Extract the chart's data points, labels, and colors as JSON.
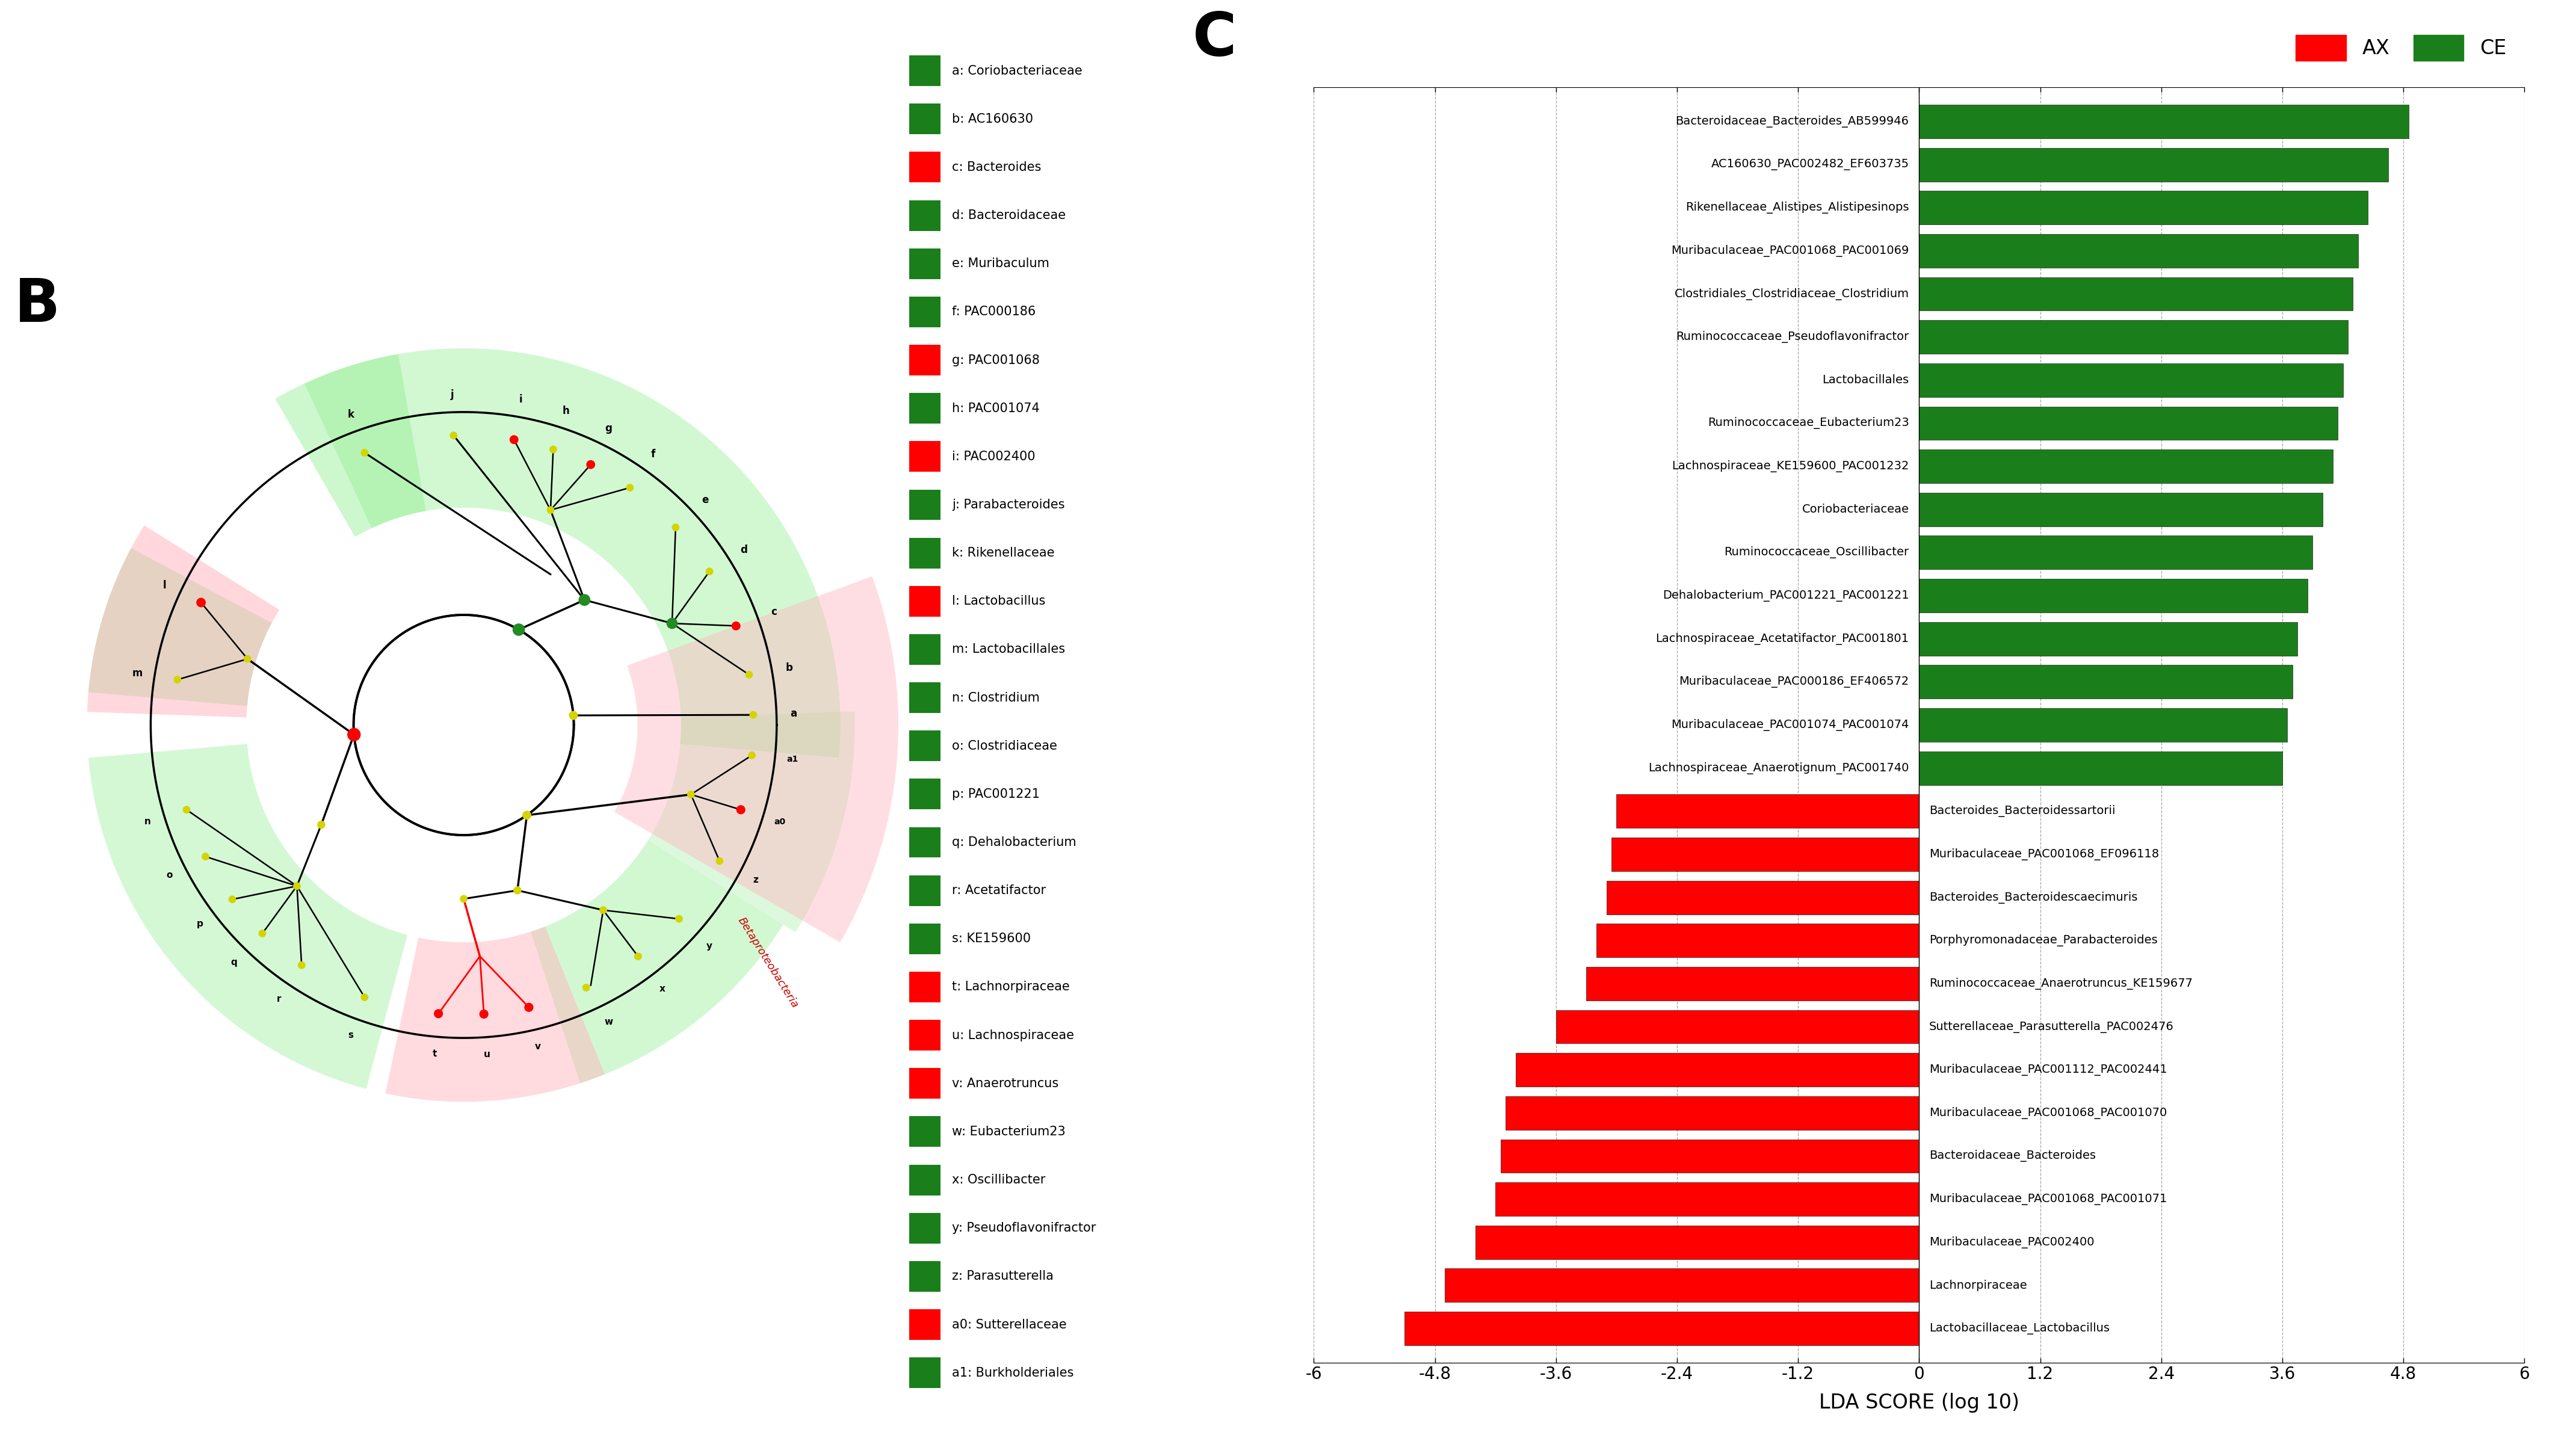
{
  "panel_c": {
    "green_bars": [
      {
        "label": "Bacteroidaceae_Bacteroides_AB599946",
        "value": 4.85
      },
      {
        "label": "AC160630_PAC002482_EF603735",
        "value": 4.65
      },
      {
        "label": "Rikenellaceae_Alistipes_Alistipesinops",
        "value": 4.45
      },
      {
        "label": "Muribaculaceae_PAC001068_PAC001069",
        "value": 4.35
      },
      {
        "label": "Clostridiales_Clostridiaceae_Clostridium",
        "value": 4.3
      },
      {
        "label": "Ruminococcaceae_Pseudoflavonifractor",
        "value": 4.25
      },
      {
        "label": "Lactobacillales",
        "value": 4.2
      },
      {
        "label": "Ruminococcaceae_Eubacterium23",
        "value": 4.15
      },
      {
        "label": "Lachnospiraceae_KE159600_PAC001232",
        "value": 4.1
      },
      {
        "label": "Coriobacteriaceae",
        "value": 4.0
      },
      {
        "label": "Ruminococcaceae_Oscillibacter",
        "value": 3.9
      },
      {
        "label": "Dehalobacterium_PAC001221_PAC001221",
        "value": 3.85
      },
      {
        "label": "Lachnospiraceae_Acetatifactor_PAC001801",
        "value": 3.75
      },
      {
        "label": "Muribaculaceae_PAC000186_EF406572",
        "value": 3.7
      },
      {
        "label": "Muribaculaceae_PAC001074_PAC001074",
        "value": 3.65
      },
      {
        "label": "Lachnospiraceae_Anaerotignum_PAC001740",
        "value": 3.6
      }
    ],
    "red_bars": [
      {
        "label": "Bacteroides_Bacteroidessartorii",
        "value": -3.0
      },
      {
        "label": "Muribaculaceae_PAC001068_EF096118",
        "value": -3.05
      },
      {
        "label": "Bacteroides_Bacteroidescaecimuris",
        "value": -3.1
      },
      {
        "label": "Porphyromonadaceae_Parabacteroides",
        "value": -3.2
      },
      {
        "label": "Ruminococcaceae_Anaerotruncus_KE159677",
        "value": -3.3
      },
      {
        "label": "Sutterellaceae_Parasutterella_PAC002476",
        "value": -3.6
      },
      {
        "label": "Muribaculaceae_PAC001112_PAC002441",
        "value": -4.0
      },
      {
        "label": "Muribaculaceae_PAC001068_PAC001070",
        "value": -4.1
      },
      {
        "label": "Bacteroidaceae_Bacteroides",
        "value": -4.15
      },
      {
        "label": "Muribaculaceae_PAC001068_PAC001071",
        "value": -4.2
      },
      {
        "label": "Muribaculaceae_PAC002400",
        "value": -4.4
      },
      {
        "label": "Lachnorpiraceae",
        "value": -4.7
      },
      {
        "label": "Lactobacillaceae_Lactobacillus",
        "value": -5.1
      }
    ],
    "xlim": [
      -6.0,
      6.0
    ],
    "xlabel": "LDA SCORE (log 10)",
    "xticks": [
      -6.0,
      -4.8,
      -3.6,
      -2.4,
      -1.2,
      0.0,
      1.2,
      2.4,
      3.6,
      4.8,
      6.0
    ],
    "bar_color_red": "#FF0000",
    "bar_color_green": "#1a7f1a"
  },
  "panel_b": {
    "legend_labels": [
      {
        "letter": "a",
        "label": "Coriobacteriaceae",
        "color": "#1a7f1a"
      },
      {
        "letter": "b",
        "label": "AC160630",
        "color": "#1a7f1a"
      },
      {
        "letter": "c",
        "label": "Bacteroides",
        "color": "#FF0000"
      },
      {
        "letter": "d",
        "label": "Bacteroidaceae",
        "color": "#1a7f1a"
      },
      {
        "letter": "e",
        "label": "Muribaculum",
        "color": "#1a7f1a"
      },
      {
        "letter": "f",
        "label": "PAC000186",
        "color": "#1a7f1a"
      },
      {
        "letter": "g",
        "label": "PAC001068",
        "color": "#FF0000"
      },
      {
        "letter": "h",
        "label": "PAC001074",
        "color": "#1a7f1a"
      },
      {
        "letter": "i",
        "label": "PAC002400",
        "color": "#FF0000"
      },
      {
        "letter": "j",
        "label": "Parabacteroides",
        "color": "#1a7f1a"
      },
      {
        "letter": "k",
        "label": "Rikenellaceae",
        "color": "#1a7f1a"
      },
      {
        "letter": "l",
        "label": "Lactobacillus",
        "color": "#FF0000"
      },
      {
        "letter": "m",
        "label": "Lactobacillales",
        "color": "#1a7f1a"
      },
      {
        "letter": "n",
        "label": "Clostridium",
        "color": "#1a7f1a"
      },
      {
        "letter": "o",
        "label": "Clostridiaceae",
        "color": "#1a7f1a"
      },
      {
        "letter": "p",
        "label": "PAC001221",
        "color": "#1a7f1a"
      },
      {
        "letter": "q",
        "label": "Dehalobacterium",
        "color": "#1a7f1a"
      },
      {
        "letter": "r",
        "label": "Acetatifactor",
        "color": "#1a7f1a"
      },
      {
        "letter": "s",
        "label": "KE159600",
        "color": "#1a7f1a"
      },
      {
        "letter": "t",
        "label": "Lachnorpiraceae",
        "color": "#FF0000"
      },
      {
        "letter": "u",
        "label": "Lachnospiraceae",
        "color": "#FF0000"
      },
      {
        "letter": "v",
        "label": "Anaerotruncus",
        "color": "#FF0000"
      },
      {
        "letter": "w",
        "label": "Eubacterium23",
        "color": "#1a7f1a"
      },
      {
        "letter": "x",
        "label": "Oscillibacter",
        "color": "#1a7f1a"
      },
      {
        "letter": "y",
        "label": "Pseudoflavonifractor",
        "color": "#1a7f1a"
      },
      {
        "letter": "z",
        "label": "Parasutterella",
        "color": "#1a7f1a"
      },
      {
        "letter": "a0",
        "label": "Sutterellaceae",
        "color": "#FF0000"
      },
      {
        "letter": "a1",
        "label": "Burkholderiales",
        "color": "#1a7f1a"
      }
    ]
  }
}
